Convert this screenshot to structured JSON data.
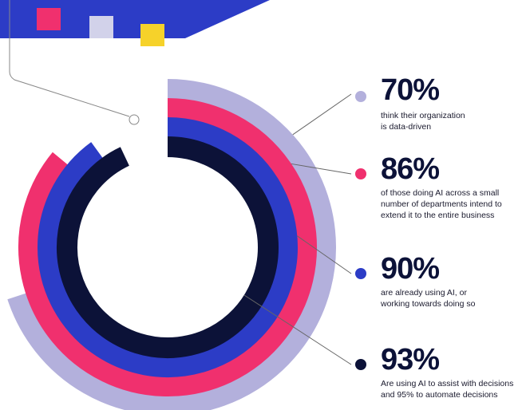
{
  "chart_data": {
    "type": "radial_bar",
    "title": "",
    "series": [
      {
        "label": "70%",
        "value": 70,
        "description": "think their organization\nis data-driven",
        "color": "#b3b0dc"
      },
      {
        "label": "86%",
        "value": 86,
        "description": "of those doing AI across a small\nnumber of departments intend to\nextend it to the entire business",
        "color": "#f0306e"
      },
      {
        "label": "90%",
        "value": 90,
        "description": "are already using AI, or\nworking towards doing so",
        "color": "#2c3cc6"
      },
      {
        "label": "93%",
        "value": 93,
        "description": "Are using AI to assist with decisions\nand 95% to automate decisions",
        "color": "#0c1238"
      }
    ]
  },
  "decor": {
    "banner_color": "#2c3cc6",
    "cube_colors": [
      "#f0306e",
      "#d2d2ea",
      "#f6d22a"
    ]
  }
}
